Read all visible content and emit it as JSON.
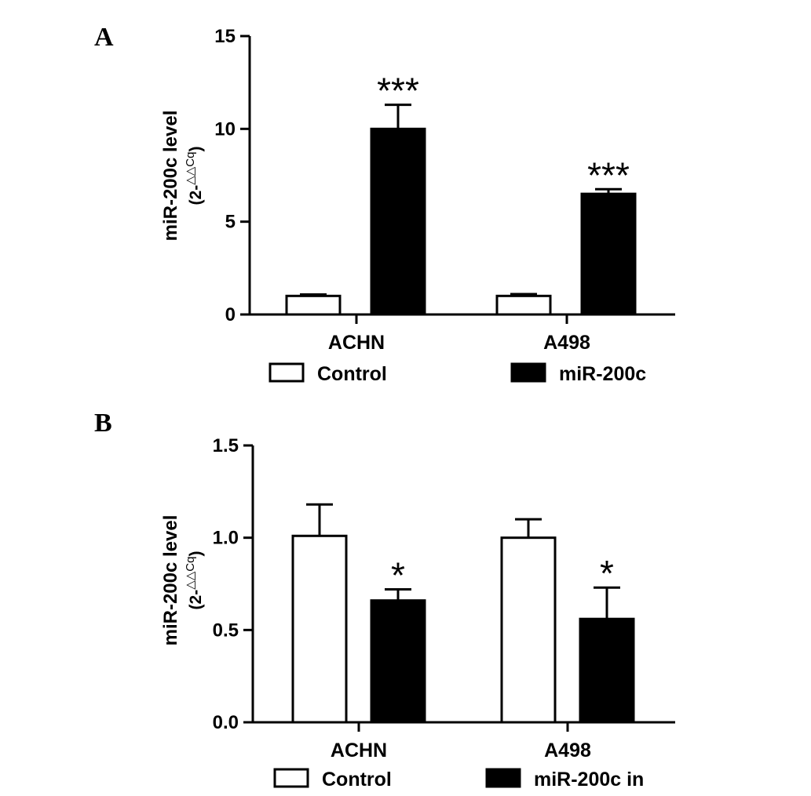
{
  "chart_data": [
    {
      "panel_label": "A",
      "type": "bar",
      "categories": [
        "ACHN",
        "A498"
      ],
      "series": [
        {
          "name": "Control",
          "color": "#ffffff",
          "values": [
            1.0,
            1.0
          ],
          "errors": [
            0.08,
            0.1
          ]
        },
        {
          "name": "miR-200c",
          "color": "#000000",
          "values": [
            10.0,
            6.5
          ],
          "errors": [
            1.3,
            0.25
          ]
        }
      ],
      "significance": [
        {
          "category": 0,
          "series": 1,
          "label": "***"
        },
        {
          "category": 1,
          "series": 1,
          "label": "***"
        }
      ],
      "ylabel": "miR-200c level",
      "ylabel_sub_prefix": "(2-",
      "ylabel_sub_sup": "△△Cq",
      "ylabel_sub_suffix": ")",
      "ylim": [
        0,
        15
      ],
      "yticks": [
        0,
        5,
        10,
        15
      ],
      "ytick_labels": [
        "0",
        "5",
        "10",
        "15"
      ],
      "legend_position": "bottom",
      "grid": false
    },
    {
      "panel_label": "B",
      "type": "bar",
      "categories": [
        "ACHN",
        "A498"
      ],
      "series": [
        {
          "name": "Control",
          "color": "#ffffff",
          "values": [
            1.01,
            1.0
          ],
          "errors": [
            0.17,
            0.1
          ]
        },
        {
          "name": "miR-200c in",
          "color": "#000000",
          "values": [
            0.66,
            0.56
          ],
          "errors": [
            0.06,
            0.17
          ]
        }
      ],
      "significance": [
        {
          "category": 0,
          "series": 1,
          "label": "*"
        },
        {
          "category": 1,
          "series": 1,
          "label": "*"
        }
      ],
      "ylabel": "miR-200c level",
      "ylabel_sub_prefix": "(2-",
      "ylabel_sub_sup": "△△Cq",
      "ylabel_sub_suffix": ")",
      "ylim": [
        0,
        1.5
      ],
      "yticks": [
        0,
        0.5,
        1.0,
        1.5
      ],
      "ytick_labels": [
        "0.0",
        "0.5",
        "1.0",
        "1.5"
      ],
      "legend_position": "bottom",
      "grid": false
    }
  ]
}
